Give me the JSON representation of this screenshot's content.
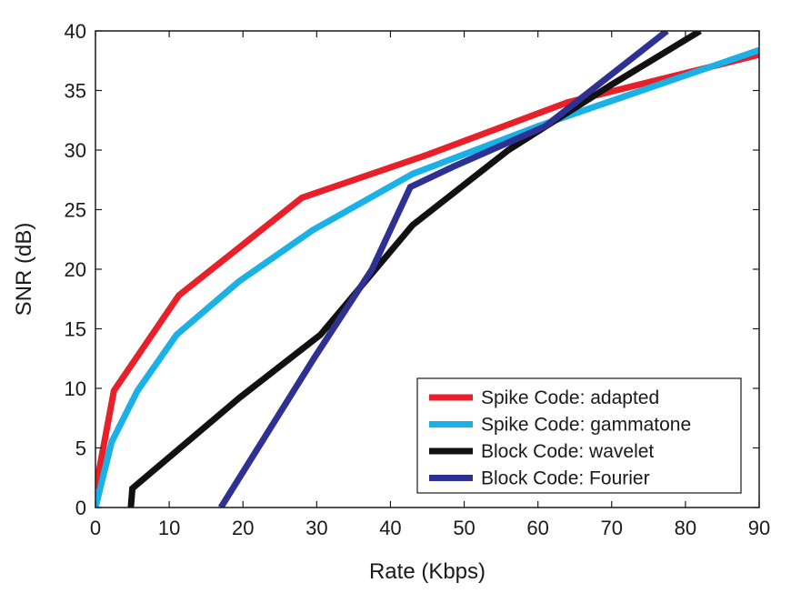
{
  "chart_data": {
    "type": "line",
    "title": "",
    "xlabel": "Rate (Kbps)",
    "ylabel": "SNR (dB)",
    "xlim": [
      0,
      90
    ],
    "ylim": [
      0,
      40
    ],
    "xticks": [
      0,
      10,
      20,
      30,
      40,
      50,
      60,
      70,
      80,
      90
    ],
    "yticks": [
      0,
      5,
      10,
      15,
      20,
      25,
      30,
      35,
      40
    ],
    "grid": false,
    "legend_position": "bottom-right",
    "series": [
      {
        "name": "Spike Code: adapted",
        "color": "#e8202a",
        "points": [
          [
            0,
            1.5
          ],
          [
            2.5,
            9.8
          ],
          [
            11.3,
            17.8
          ],
          [
            28,
            26
          ],
          [
            45,
            29.6
          ],
          [
            64,
            34
          ],
          [
            90,
            38
          ]
        ]
      },
      {
        "name": "Spike Code: gammatone",
        "color": "#19b1e6",
        "points": [
          [
            0,
            0
          ],
          [
            2.2,
            5.5
          ],
          [
            5.7,
            9.8
          ],
          [
            11,
            14.5
          ],
          [
            19.5,
            19
          ],
          [
            29.5,
            23.3
          ],
          [
            43,
            28
          ],
          [
            60,
            32
          ],
          [
            90,
            38.4
          ]
        ]
      },
      {
        "name": "Block Code: wavelet",
        "color": "#111111",
        "points": [
          [
            4.8,
            0
          ],
          [
            5.0,
            1.6
          ],
          [
            19.5,
            9.2
          ],
          [
            30.5,
            14.5
          ],
          [
            43,
            23.7
          ],
          [
            56,
            30
          ],
          [
            70,
            35.5
          ],
          [
            82,
            40
          ]
        ]
      },
      {
        "name": "Block Code: Fourier",
        "color": "#2e3192",
        "points": [
          [
            17,
            0
          ],
          [
            29.6,
            12.5
          ],
          [
            37.5,
            20
          ],
          [
            42.7,
            26.9
          ],
          [
            48.5,
            28.6
          ],
          [
            61,
            32
          ],
          [
            77.5,
            40
          ]
        ]
      }
    ]
  }
}
